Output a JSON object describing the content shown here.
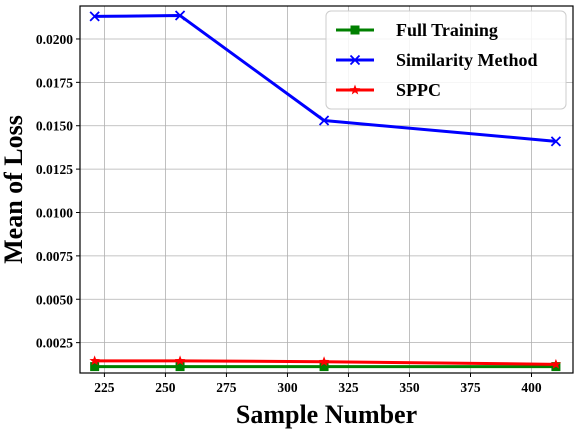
{
  "chart_data": {
    "type": "line",
    "title": "",
    "xlabel": "Sample Number",
    "ylabel": "Mean of Loss",
    "xlim": [
      215,
      417
    ],
    "ylim": [
      0.00075,
      0.0219
    ],
    "xticks": [
      225,
      250,
      275,
      300,
      325,
      350,
      375,
      400
    ],
    "yticks": [
      0.0025,
      0.005,
      0.0075,
      0.01,
      0.0125,
      0.015,
      0.0175,
      0.02
    ],
    "ytick_labels": [
      "0.0025",
      "0.0050",
      "0.0075",
      "0.0100",
      "0.0125",
      "0.0150",
      "0.0175",
      "0.0200"
    ],
    "grid": true,
    "legend_position": "top-right",
    "x": [
      221,
      256,
      315,
      410
    ],
    "series": [
      {
        "name": "Full Training",
        "values": [
          0.00112,
          0.00112,
          0.00112,
          0.00112
        ],
        "color": "#008000",
        "marker": "square"
      },
      {
        "name": "Similarity Method",
        "values": [
          0.0213,
          0.02135,
          0.0153,
          0.0141
        ],
        "color": "#0000ff",
        "marker": "x"
      },
      {
        "name": "SPPC",
        "values": [
          0.00145,
          0.00145,
          0.0014,
          0.00125
        ],
        "color": "#ff0000",
        "marker": "star"
      }
    ]
  }
}
